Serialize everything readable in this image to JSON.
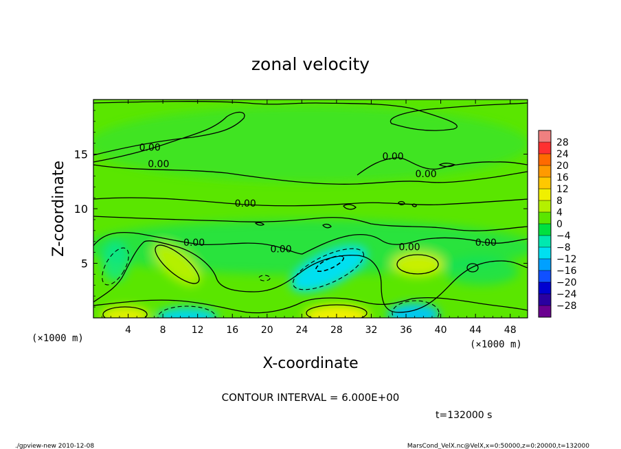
{
  "chart_data": {
    "type": "contour",
    "title": "zonal velocity",
    "xlabel": "X-coordinate",
    "ylabel": "Z-coordinate",
    "x_unit_label_left": "(×1000 m)",
    "x_unit_label_right": "(×1000 m)",
    "xlim": [
      0,
      50
    ],
    "ylim": [
      0,
      20
    ],
    "x_ticks": [
      4,
      8,
      12,
      16,
      20,
      24,
      28,
      32,
      36,
      40,
      44,
      48
    ],
    "y_ticks": [
      5,
      10,
      15
    ],
    "contour_interval_text": "CONTOUR INTERVAL = 6.000E+00",
    "time_text": "t=132000 s",
    "footer_left": "./gpview-new   2010-12-08",
    "footer_right": "MarsCond_VelX.nc@VelX,x=0:50000,z=0:20000,t=132000",
    "colorbar": {
      "levels": [
        -28,
        -24,
        -20,
        -16,
        -12,
        -8,
        -4,
        0,
        4,
        8,
        12,
        16,
        20,
        24,
        28
      ],
      "level_labels": [
        "28",
        "24",
        "20",
        "16",
        "12",
        "8",
        "4",
        "0",
        "−4",
        "−8",
        "−12",
        "−16",
        "−20",
        "−24",
        "−28"
      ],
      "colors": [
        "#f08080",
        "#ff3030",
        "#ff6a00",
        "#ff9a00",
        "#ffc800",
        "#f0f000",
        "#b4f000",
        "#5ae600",
        "#00e040",
        "#00e8b0",
        "#00e0f0",
        "#00a0ff",
        "#1050ff",
        "#0000d0",
        "#2a00a0",
        "#6a0090"
      ]
    },
    "contour_labels": [
      {
        "text": "0.00",
        "x": 6.5,
        "z": 15.3
      },
      {
        "text": "0.00",
        "x": 7.5,
        "z": 13.8
      },
      {
        "text": "0.00",
        "x": 17.5,
        "z": 10.2
      },
      {
        "text": "0.00",
        "x": 11.6,
        "z": 6.6
      },
      {
        "text": "0.00",
        "x": 21.6,
        "z": 6.0
      },
      {
        "text": "0.00",
        "x": 34.5,
        "z": 14.5
      },
      {
        "text": "0.00",
        "x": 38.3,
        "z": 12.9
      },
      {
        "text": "0.00",
        "x": 36.4,
        "z": 6.2
      },
      {
        "text": "0.00",
        "x": 45.2,
        "z": 6.6
      }
    ],
    "features": [
      {
        "kind": "max",
        "x": 29,
        "z": 0.6,
        "value_sign": "+"
      },
      {
        "kind": "max",
        "x": 3,
        "z": 0.5,
        "value_sign": "+"
      },
      {
        "kind": "max",
        "x": 9.5,
        "z": 5.5,
        "value_sign": "+"
      },
      {
        "kind": "max",
        "x": 38,
        "z": 5.0,
        "value_sign": "+"
      },
      {
        "kind": "min",
        "x": 26.8,
        "z": 4.7,
        "value_sign": "-"
      },
      {
        "kind": "min",
        "x": 11,
        "z": 0.3,
        "value_sign": "-"
      },
      {
        "kind": "min",
        "x": 37,
        "z": 0.8,
        "value_sign": "-"
      },
      {
        "kind": "min",
        "x": 3.5,
        "z": 4.5,
        "value_sign": "-"
      }
    ]
  }
}
